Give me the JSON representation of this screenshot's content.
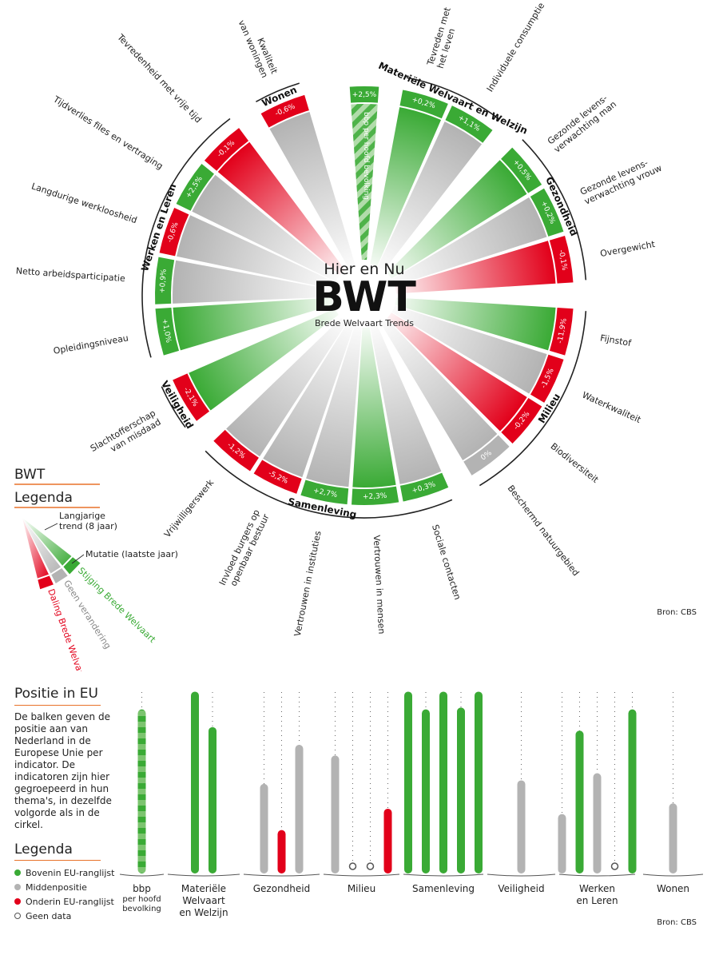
{
  "center": {
    "line1": "Hier en Nu",
    "line2": "BWT",
    "line3": "Brede Welvaart Trends"
  },
  "legend_top": {
    "title1": "BWT",
    "title2": "Legenda",
    "trend_label": "Langjarige\ntrend (8 jaar)",
    "mutatie_label": "Mutatie (laatste jaar)",
    "stijging": "Stijging Brede Welvaart",
    "geen": "Geen verandering",
    "daling": "Daling Brede Welvaart"
  },
  "source_top": "Bron: CBS",
  "source_bottom": "Bron: CBS",
  "colors": {
    "green": "#3aaa35",
    "red": "#e2001a",
    "gray": "#b3b3b3",
    "orange": "#e8722a"
  },
  "chart_data": [
    {
      "type": "radial-bar",
      "themes": [
        {
          "name": "Materiële Welvaart en Welzijn",
          "indicators": [
            {
              "name": "Tevreden met\nhet leven",
              "mutatie": "+0,2%",
              "trend": "green"
            },
            {
              "name": "Individuele consumptie",
              "mutatie": "+1,1%",
              "trend": "gray"
            }
          ]
        },
        {
          "name": "Gezondheid",
          "indicators": [
            {
              "name": "Gezonde levens-\nverwachting man",
              "mutatie": "+0,5%",
              "trend": "green"
            },
            {
              "name": "Gezonde levens-\nverwachting vrouw",
              "mutatie": "+0,2%",
              "trend": "gray"
            },
            {
              "name": "Overgewicht",
              "mutatie": "-0,1%",
              "trend": "red"
            }
          ]
        },
        {
          "name": "Milieu",
          "indicators": [
            {
              "name": "Fijnstof",
              "mutatie": "-11,9%",
              "trend": "green"
            },
            {
              "name": "Waterkwaliteit",
              "mutatie": "-1,5%",
              "trend": "gray"
            },
            {
              "name": "Biodiversiteit",
              "mutatie": "-0,2%",
              "trend": "red"
            },
            {
              "name": "Beschermd natuurgebied",
              "mutatie": "0%",
              "trend": "gray"
            }
          ]
        },
        {
          "name": "Samenleving",
          "indicators": [
            {
              "name": "Sociale contacten",
              "mutatie": "+0,3%",
              "trend": "gray"
            },
            {
              "name": "Vertrouwen in mensen",
              "mutatie": "+2,3%",
              "trend": "green"
            },
            {
              "name": "Vertrouwen in instituties",
              "mutatie": "+2,7%",
              "trend": "gray"
            },
            {
              "name": "Invloed burgers op\nopenbaar bestuur",
              "mutatie": "-5,2%",
              "trend": "gray"
            },
            {
              "name": "Vrijwilligerswerk",
              "mutatie": "-1,2%",
              "trend": "gray"
            }
          ]
        },
        {
          "name": "Veiligheid",
          "indicators": [
            {
              "name": "Slachtofferschap\nvan misdaad",
              "mutatie": "-2,1%",
              "trend": "green"
            }
          ]
        },
        {
          "name": "Werken en Leren",
          "indicators": [
            {
              "name": "Opleidingsniveau",
              "mutatie": "+1,0%",
              "trend": "green"
            },
            {
              "name": "Netto arbeidsparticipatie",
              "mutatie": "+0,9%",
              "trend": "gray"
            },
            {
              "name": "Langdurige werkloosheid",
              "mutatie": "-0,6%",
              "trend": "gray"
            },
            {
              "name": "Tijdverlies files en vertraging",
              "mutatie": "+2,5%",
              "trend": "gray"
            },
            {
              "name": "Tevredenheid met vrije tijd",
              "mutatie": "-0,1%",
              "trend": "red"
            }
          ]
        },
        {
          "name": "Wonen",
          "indicators": [
            {
              "name": "Kwaliteit\nvan woningen",
              "mutatie": "-0,6%",
              "trend": "gray"
            }
          ]
        }
      ],
      "special": {
        "name": "bbp per hoofd bevolking",
        "mutatie": "+2,5%",
        "trend": "green-striped"
      }
    },
    {
      "type": "bar",
      "title": "Positie in EU",
      "description": "De balken geven de positie aan van Nederland in de Europese Unie per indicator. De indicatoren zijn hier gegroepeerd in hun thema's, in dezelfde volgorde als in de cirkel.",
      "legend_title": "Legenda",
      "legend": [
        {
          "label": "Bovenin EU-ranglijst",
          "color": "#3aaa35"
        },
        {
          "label": "Middenpositie",
          "color": "#b3b3b3"
        },
        {
          "label": "Onderin EU-ranglijst",
          "color": "#e2001a"
        },
        {
          "label": "Geen data",
          "color": "none"
        }
      ],
      "ylim": [
        0,
        1
      ],
      "groups": [
        {
          "label": "bbp\nper hoofd\nbevolking",
          "bars": [
            {
              "value": 0.88,
              "status": "striped"
            }
          ]
        },
        {
          "label": "Materiële\nWelvaart\nen Welzijn",
          "bars": [
            {
              "value": 0.98,
              "status": "top"
            },
            {
              "value": 0.78,
              "status": "top"
            }
          ]
        },
        {
          "label": "Gezondheid",
          "bars": [
            {
              "value": 0.46,
              "status": "middle"
            },
            {
              "value": 0.2,
              "status": "bottom"
            },
            {
              "value": 0.68,
              "status": "middle"
            }
          ]
        },
        {
          "label": "Milieu",
          "bars": [
            {
              "value": 0.62,
              "status": "middle"
            },
            {
              "value": null,
              "status": "nodata"
            },
            {
              "value": null,
              "status": "nodata"
            },
            {
              "value": 0.32,
              "status": "bottom"
            }
          ]
        },
        {
          "label": "Samenleving",
          "bars": [
            {
              "value": 0.98,
              "status": "top"
            },
            {
              "value": 0.88,
              "status": "top"
            },
            {
              "value": 0.98,
              "status": "top"
            },
            {
              "value": 0.89,
              "status": "top"
            },
            {
              "value": 0.98,
              "status": "top"
            }
          ]
        },
        {
          "label": "Veiligheid",
          "bars": [
            {
              "value": 0.48,
              "status": "middle"
            }
          ]
        },
        {
          "label": "Werken\nen Leren",
          "bars": [
            {
              "value": 0.29,
              "status": "middle"
            },
            {
              "value": 0.76,
              "status": "top"
            },
            {
              "value": 0.52,
              "status": "middle"
            },
            {
              "value": null,
              "status": "nodata"
            },
            {
              "value": 0.88,
              "status": "top"
            }
          ]
        },
        {
          "label": "Wonen",
          "bars": [
            {
              "value": 0.35,
              "status": "middle"
            }
          ]
        }
      ]
    }
  ]
}
